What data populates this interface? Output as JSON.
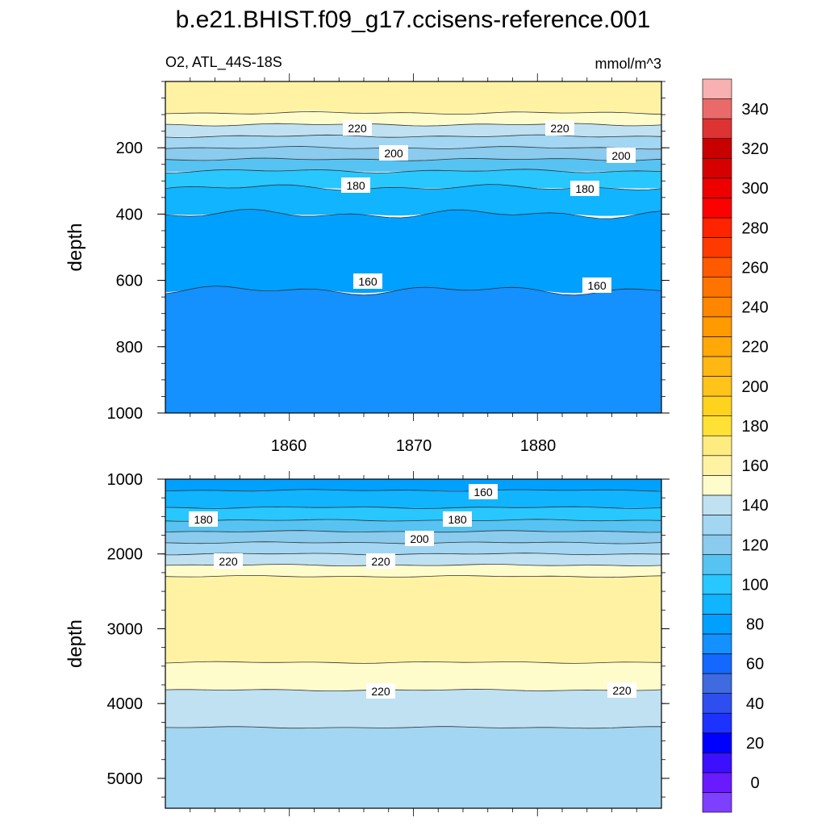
{
  "chart_data": {
    "type": "heatmap",
    "title": "b.e21.BHIST.f09_g17.ccisens-reference.001",
    "variable_region": "O2, ATL_44S-18S",
    "units": "mmol/m^3",
    "colorbar": {
      "tick_labels": [
        "0",
        "20",
        "40",
        "60",
        "80",
        "100",
        "120",
        "140",
        "160",
        "180",
        "200",
        "220",
        "240",
        "260",
        "280",
        "300",
        "320",
        "340"
      ],
      "tick_values": [
        0,
        20,
        40,
        60,
        80,
        100,
        120,
        140,
        160,
        170,
        180,
        190,
        200,
        210,
        220,
        230,
        240,
        250,
        260,
        270,
        280,
        290,
        300,
        310,
        320,
        330,
        340
      ],
      "colors": [
        "#7f3fff",
        "#6a1aff",
        "#3c10ff",
        "#0000ff",
        "#1e32ff",
        "#2e4ef0",
        "#3f6ae0",
        "#1468ff",
        "#1490ff",
        "#00a0ff",
        "#10b4ff",
        "#28c7ff",
        "#56c3f3",
        "#8acbee",
        "#a2d6f2",
        "#bfe1f2",
        "#fffccc",
        "#fff3a3",
        "#ffec80",
        "#ffe135",
        "#ffd21e",
        "#ffc31a",
        "#ffb712",
        "#ffa807",
        "#ff9a00",
        "#ff8600",
        "#ff7300",
        "#ff5a00",
        "#ff3a00",
        "#ff2300",
        "#ff0000",
        "#ee0000",
        "#d70000",
        "#c80000",
        "#dd3333",
        "#ea6a6a",
        "#f8b0b0"
      ]
    },
    "panels": [
      {
        "name": "upper",
        "ylabel": "depth",
        "ylim": [
          0,
          1000
        ],
        "y_ticks": [
          "200",
          "400",
          "600",
          "800",
          "1000"
        ],
        "xlim": [
          1850,
          1890
        ],
        "x_ticks": [
          "1860",
          "1870",
          "1880"
        ],
        "contour_labels": [
          "220",
          "220",
          "200",
          "200",
          "180",
          "180",
          "160",
          "160"
        ],
        "layers": [
          {
            "value_range": [
              240,
              250
            ],
            "depth_top": 0,
            "depth_bottom": 95
          },
          {
            "value_range": [
              230,
              240
            ],
            "depth_top": 95,
            "depth_bottom": 130
          },
          {
            "value_range": [
              220,
              230
            ],
            "depth_top": 130,
            "depth_bottom": 165
          },
          {
            "value_range": [
              210,
              220
            ],
            "depth_top": 165,
            "depth_bottom": 200
          },
          {
            "value_range": [
              200,
              210
            ],
            "depth_top": 200,
            "depth_bottom": 235
          },
          {
            "value_range": [
              190,
              200
            ],
            "depth_top": 235,
            "depth_bottom": 270
          },
          {
            "value_range": [
              180,
              190
            ],
            "depth_top": 270,
            "depth_bottom": 320
          },
          {
            "value_range": [
              170,
              180
            ],
            "depth_top": 320,
            "depth_bottom": 400
          },
          {
            "value_range": [
              160,
              170
            ],
            "depth_top": 400,
            "depth_bottom": 630
          },
          {
            "value_range": [
              150,
              160
            ],
            "depth_top": 630,
            "depth_bottom": 1000
          }
        ]
      },
      {
        "name": "lower",
        "ylabel": "depth",
        "ylim": [
          1000,
          5400
        ],
        "y_ticks": [
          "1000",
          "2000",
          "3000",
          "4000",
          "5000"
        ],
        "xlim": [
          1850,
          1890
        ],
        "x_ticks": [
          "1860",
          "1870",
          "1880"
        ],
        "contour_labels": [
          "160",
          "180",
          "180",
          "200",
          "220",
          "220",
          "220",
          "220"
        ],
        "layers": [
          {
            "value_range": [
              160,
              170
            ],
            "depth_top": 1000,
            "depth_bottom": 1150
          },
          {
            "value_range": [
              170,
              180
            ],
            "depth_top": 1150,
            "depth_bottom": 1380
          },
          {
            "value_range": [
              180,
              190
            ],
            "depth_top": 1380,
            "depth_bottom": 1550
          },
          {
            "value_range": [
              190,
              200
            ],
            "depth_top": 1550,
            "depth_bottom": 1700
          },
          {
            "value_range": [
              200,
              210
            ],
            "depth_top": 1700,
            "depth_bottom": 1850
          },
          {
            "value_range": [
              210,
              220
            ],
            "depth_top": 1850,
            "depth_bottom": 2000
          },
          {
            "value_range": [
              220,
              230
            ],
            "depth_top": 2000,
            "depth_bottom": 2150
          },
          {
            "value_range": [
              230,
              240
            ],
            "depth_top": 2150,
            "depth_bottom": 2300
          },
          {
            "value_range": [
              240,
              250
            ],
            "depth_top": 2300,
            "depth_bottom": 3450
          },
          {
            "value_range": [
              230,
              240
            ],
            "depth_top": 3450,
            "depth_bottom": 3820
          },
          {
            "value_range": [
              220,
              230
            ],
            "depth_top": 3820,
            "depth_bottom": 4320
          },
          {
            "value_range": [
              210,
              220
            ],
            "depth_top": 4320,
            "depth_bottom": 5400
          }
        ]
      }
    ]
  }
}
